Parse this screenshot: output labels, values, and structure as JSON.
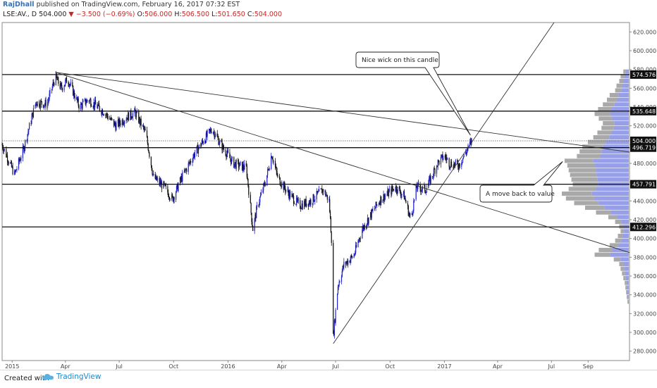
{
  "header": {
    "user": "RajDhall",
    "published": "published on TradingView.com, February 16, 2017 07:32 EST",
    "symbol_line": "LSE:AV., D  504.000",
    "change": "▼ −3.500 (−0.69%)",
    "ohlc": [
      {
        "label": "O:",
        "value": "506.000"
      },
      {
        "label": "H:",
        "value": "506.500"
      },
      {
        "label": "L:",
        "value": "501.650"
      },
      {
        "label": "C:",
        "value": "504.000"
      }
    ]
  },
  "footer": {
    "created_with": "Created with",
    "brand": "TradingView"
  },
  "colors": {
    "up_candle": "#2222cc",
    "down_candle": "#111111",
    "volume_profile_blue": "#8c95e6",
    "volume_profile_gray": "#9a9a9a",
    "last_price_label": "#111111"
  },
  "chart_data": {
    "type": "candlestick",
    "title": "",
    "ylim": [
      270,
      630
    ],
    "y_ticks": [
      280,
      300,
      320,
      340,
      360,
      380,
      400,
      420,
      440,
      460,
      480,
      500,
      520,
      540,
      560,
      580,
      600,
      620
    ],
    "x_tick_labels": [
      "2015",
      "Apr",
      "Jul",
      "Oct",
      "2016",
      "Apr",
      "Jul",
      "Oct",
      "2017",
      "Apr",
      "Jul",
      "Sep"
    ],
    "x_ticks": [
      "2015-01-01",
      "2015-04-01",
      "2015-07-01",
      "2015-10-01",
      "2016-01-01",
      "2016-04-01",
      "2016-07-01",
      "2016-10-01",
      "2017-01-01",
      "2017-04-01",
      "2017-07-01",
      "2017-09-01"
    ],
    "xlim": [
      "2014-12-15",
      "2017-11-10"
    ],
    "horizontal_levels": [
      {
        "value": 574.576,
        "label": "574.576"
      },
      {
        "value": 535.648,
        "label": "535.648"
      },
      {
        "value": 496.719,
        "label": "496.719"
      },
      {
        "value": 457.791,
        "label": "457.791"
      },
      {
        "value": 412.296,
        "label": "412.296"
      }
    ],
    "last_price": {
      "value": 504.0,
      "label": "504.000"
    },
    "trend_lines": [
      {
        "from": [
          "2015-03-15",
          577
        ],
        "to": [
          "2017-11-10",
          492
        ]
      },
      {
        "from": [
          "2015-03-15",
          577
        ],
        "to": [
          "2017-11-10",
          385
        ]
      },
      {
        "from": [
          "2016-06-27",
          288
        ],
        "to": [
          "2017-07-25",
          648
        ]
      }
    ],
    "annotations": [
      {
        "text": "Nice wick on this candle",
        "date": "2017-02-14",
        "price": 510
      },
      {
        "text": "A move back to value",
        "date": "2017-07-20",
        "price": 482
      }
    ],
    "path_points": [
      [
        "2014-12-15",
        500
      ],
      [
        "2015-01-05",
        468
      ],
      [
        "2015-01-20",
        495
      ],
      [
        "2015-02-10",
        545
      ],
      [
        "2015-03-01",
        543
      ],
      [
        "2015-03-15",
        572
      ],
      [
        "2015-03-25",
        560
      ],
      [
        "2015-04-05",
        570
      ],
      [
        "2015-04-25",
        540
      ],
      [
        "2015-05-10",
        548
      ],
      [
        "2015-06-05",
        535
      ],
      [
        "2015-06-25",
        520
      ],
      [
        "2015-07-15",
        530
      ],
      [
        "2015-07-28",
        534
      ],
      [
        "2015-08-15",
        512
      ],
      [
        "2015-08-28",
        465
      ],
      [
        "2015-09-15",
        455
      ],
      [
        "2015-09-29",
        442
      ],
      [
        "2015-10-15",
        465
      ],
      [
        "2015-11-05",
        490
      ],
      [
        "2015-11-25",
        508
      ],
      [
        "2015-12-05",
        517
      ],
      [
        "2015-12-20",
        500
      ],
      [
        "2016-01-10",
        480
      ],
      [
        "2016-02-01",
        475
      ],
      [
        "2016-02-12",
        410
      ],
      [
        "2016-02-20",
        435
      ],
      [
        "2016-03-05",
        462
      ],
      [
        "2016-03-15",
        490
      ],
      [
        "2016-03-25",
        465
      ],
      [
        "2016-04-10",
        450
      ],
      [
        "2016-05-01",
        435
      ],
      [
        "2016-05-20",
        440
      ],
      [
        "2016-06-10",
        452
      ],
      [
        "2016-06-20",
        440
      ],
      [
        "2016-06-24",
        400
      ],
      [
        "2016-06-27",
        295
      ],
      [
        "2016-07-05",
        350
      ],
      [
        "2016-07-15",
        372
      ],
      [
        "2016-08-01",
        382
      ],
      [
        "2016-08-15",
        410
      ],
      [
        "2016-09-01",
        428
      ],
      [
        "2016-09-15",
        442
      ],
      [
        "2016-09-28",
        448
      ],
      [
        "2016-10-10",
        455
      ],
      [
        "2016-10-25",
        445
      ],
      [
        "2016-11-05",
        420
      ],
      [
        "2016-11-15",
        455
      ],
      [
        "2016-11-30",
        452
      ],
      [
        "2016-12-10",
        465
      ],
      [
        "2016-12-20",
        480
      ],
      [
        "2017-01-01",
        488
      ],
      [
        "2017-01-10",
        480
      ],
      [
        "2017-01-25",
        478
      ],
      [
        "2017-02-05",
        490
      ],
      [
        "2017-02-16",
        504
      ]
    ],
    "volume_profile": {
      "bins": [
        {
          "low": 575,
          "high": 580,
          "size": 8
        },
        {
          "low": 570,
          "high": 575,
          "size": 12
        },
        {
          "low": 565,
          "high": 570,
          "size": 14
        },
        {
          "low": 560,
          "high": 565,
          "size": 18
        },
        {
          "low": 555,
          "high": 560,
          "size": 20
        },
        {
          "low": 550,
          "high": 555,
          "size": 28
        },
        {
          "low": 545,
          "high": 550,
          "size": 32
        },
        {
          "low": 540,
          "high": 545,
          "size": 38
        },
        {
          "low": 535,
          "high": 540,
          "size": 45
        },
        {
          "low": 530,
          "high": 535,
          "size": 50
        },
        {
          "low": 525,
          "high": 530,
          "size": 44
        },
        {
          "low": 520,
          "high": 525,
          "size": 38
        },
        {
          "low": 515,
          "high": 520,
          "size": 40
        },
        {
          "low": 510,
          "high": 515,
          "size": 46
        },
        {
          "low": 505,
          "high": 510,
          "size": 52
        },
        {
          "low": 500,
          "high": 505,
          "size": 60
        },
        {
          "low": 495,
          "high": 500,
          "size": 68
        },
        {
          "low": 490,
          "high": 495,
          "size": 72
        },
        {
          "low": 485,
          "high": 490,
          "size": 76
        },
        {
          "low": 480,
          "high": 485,
          "size": 94
        },
        {
          "low": 475,
          "high": 480,
          "size": 90
        },
        {
          "low": 470,
          "high": 475,
          "size": 88
        },
        {
          "low": 465,
          "high": 470,
          "size": 86
        },
        {
          "low": 460,
          "high": 465,
          "size": 84
        },
        {
          "low": 455,
          "high": 460,
          "size": 82
        },
        {
          "low": 450,
          "high": 455,
          "size": 88
        },
        {
          "low": 445,
          "high": 450,
          "size": 98
        },
        {
          "low": 440,
          "high": 445,
          "size": 92
        },
        {
          "low": 435,
          "high": 440,
          "size": 80
        },
        {
          "low": 430,
          "high": 435,
          "size": 64
        },
        {
          "low": 425,
          "high": 430,
          "size": 48
        },
        {
          "low": 420,
          "high": 425,
          "size": 30
        },
        {
          "low": 415,
          "high": 420,
          "size": 20
        },
        {
          "low": 410,
          "high": 415,
          "size": 14
        },
        {
          "low": 405,
          "high": 410,
          "size": 12
        },
        {
          "low": 400,
          "high": 405,
          "size": 16
        },
        {
          "low": 395,
          "high": 400,
          "size": 20
        },
        {
          "low": 390,
          "high": 395,
          "size": 28
        },
        {
          "low": 385,
          "high": 390,
          "size": 44
        },
        {
          "low": 380,
          "high": 385,
          "size": 50
        },
        {
          "low": 375,
          "high": 380,
          "size": 22
        },
        {
          "low": 370,
          "high": 375,
          "size": 14
        },
        {
          "low": 365,
          "high": 370,
          "size": 12
        },
        {
          "low": 360,
          "high": 365,
          "size": 10
        },
        {
          "low": 355,
          "high": 360,
          "size": 8
        },
        {
          "low": 350,
          "high": 355,
          "size": 6
        },
        {
          "low": 345,
          "high": 350,
          "size": 5
        },
        {
          "low": 340,
          "high": 345,
          "size": 4
        },
        {
          "low": 335,
          "high": 340,
          "size": 3
        },
        {
          "low": 330,
          "high": 335,
          "size": 2
        }
      ]
    }
  }
}
